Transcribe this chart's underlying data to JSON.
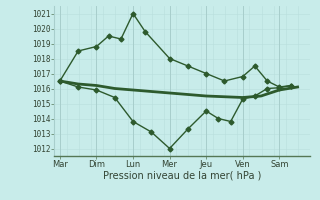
{
  "background_color": "#c8ecea",
  "grid_color_minor": "#b8dedd",
  "grid_color_major": "#a8cecc",
  "line_color": "#2d5a2d",
  "x_labels": [
    "Mar",
    "Dim",
    "Lun",
    "Mer",
    "Jeu",
    "Ven",
    "Sam"
  ],
  "ylim": [
    1011.5,
    1021.5
  ],
  "yticks": [
    1012,
    1013,
    1014,
    1015,
    1016,
    1017,
    1018,
    1019,
    1020,
    1021
  ],
  "xlabel": "Pression niveau de la mer( hPa )",
  "line1_x": [
    0,
    0.5,
    1.0,
    1.5,
    2.0,
    2.5,
    3.0,
    3.5,
    4.0,
    4.5,
    5.0,
    5.5,
    6.0,
    6.5
  ],
  "line1_y": [
    1016.5,
    1016.3,
    1016.2,
    1016.0,
    1015.9,
    1015.8,
    1015.7,
    1015.6,
    1015.5,
    1015.45,
    1015.4,
    1015.5,
    1015.9,
    1016.1
  ],
  "line2_x": [
    0,
    0.5,
    1.0,
    1.33,
    1.67,
    2.0,
    2.33,
    3.0,
    3.5,
    4.0,
    4.5,
    5.0,
    5.33,
    5.67,
    6.0,
    6.33
  ],
  "line2_y": [
    1016.5,
    1018.5,
    1018.8,
    1019.5,
    1019.3,
    1021.0,
    1019.8,
    1018.0,
    1017.5,
    1017.0,
    1016.5,
    1016.8,
    1017.5,
    1016.5,
    1016.1,
    1016.2
  ],
  "line3_x": [
    0,
    0.5,
    1.0,
    1.5,
    2.0,
    2.5,
    3.0,
    3.5,
    4.0,
    4.33,
    4.67,
    5.0,
    5.33,
    5.67,
    6.0,
    6.33
  ],
  "line3_y": [
    1016.5,
    1016.1,
    1015.9,
    1015.4,
    1013.8,
    1013.1,
    1012.0,
    1013.3,
    1014.5,
    1014.0,
    1013.8,
    1015.3,
    1015.5,
    1016.0,
    1016.05,
    1016.2
  ]
}
